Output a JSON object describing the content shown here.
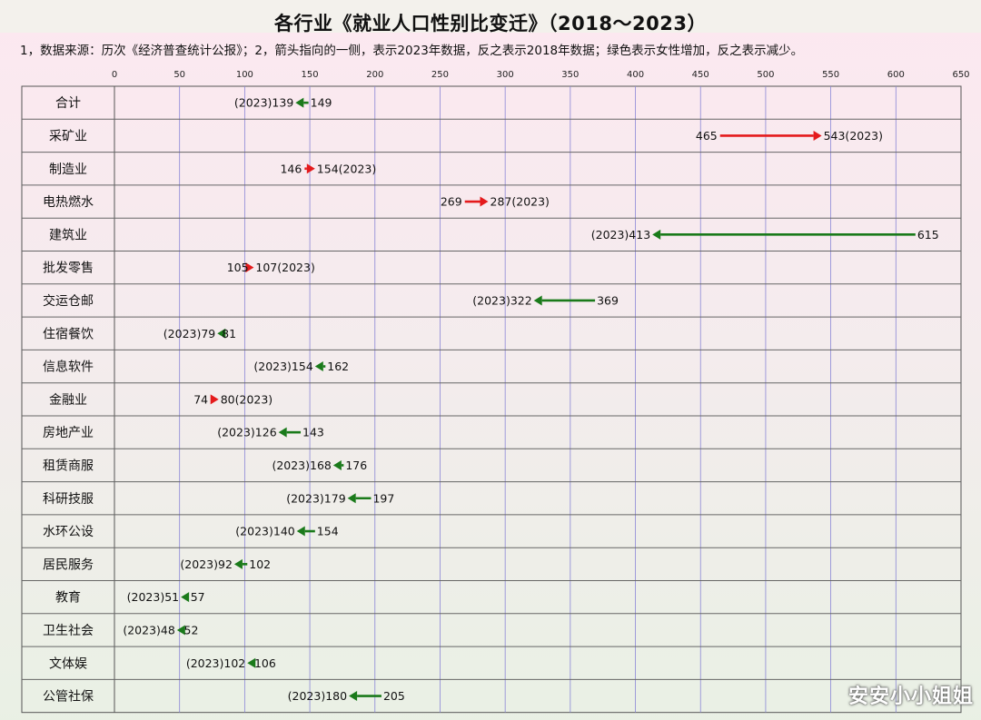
{
  "title": "各行业《就业人口性别比变迁》（2018～2023）",
  "note": "1，数据来源：历次《经济普查统计公报》；2，箭头指向的一侧，表示2023年数据，反之表示2018年数据；绿色表示女性增加，反之表示减少。",
  "watermark_text": "安安小小姐姐",
  "colors": {
    "increase": "#e41a1c",
    "decrease": "#1a7a1a",
    "grid": "#8a86d6"
  },
  "chart_data": {
    "type": "dumbbell-arrow",
    "title": "各行业《就业人口性别比变迁》（2018～2023）",
    "xlim": [
      0,
      650
    ],
    "xticks": [
      0,
      50,
      100,
      150,
      200,
      250,
      300,
      350,
      400,
      450,
      500,
      550,
      600,
      650
    ],
    "year_tag": "(2023)",
    "categories": [
      "合计",
      "采矿业",
      "制造业",
      "电热燃水",
      "建筑业",
      "批发零售",
      "交运仓邮",
      "住宿餐饮",
      "信息软件",
      "金融业",
      "房地产业",
      "租赁商服",
      "科研技服",
      "水环公设",
      "居民服务",
      "教育",
      "卫生社会",
      "文体娱",
      "公管社保"
    ],
    "series": [
      {
        "name": "2018",
        "values": [
          149,
          465,
          146,
          269,
          615,
          105,
          369,
          81,
          162,
          74,
          143,
          176,
          197,
          154,
          102,
          57,
          52,
          106,
          205
        ]
      },
      {
        "name": "2023",
        "values": [
          139,
          543,
          154,
          287,
          413,
          107,
          322,
          79,
          154,
          80,
          126,
          168,
          179,
          140,
          92,
          51,
          48,
          102,
          180
        ]
      }
    ]
  }
}
